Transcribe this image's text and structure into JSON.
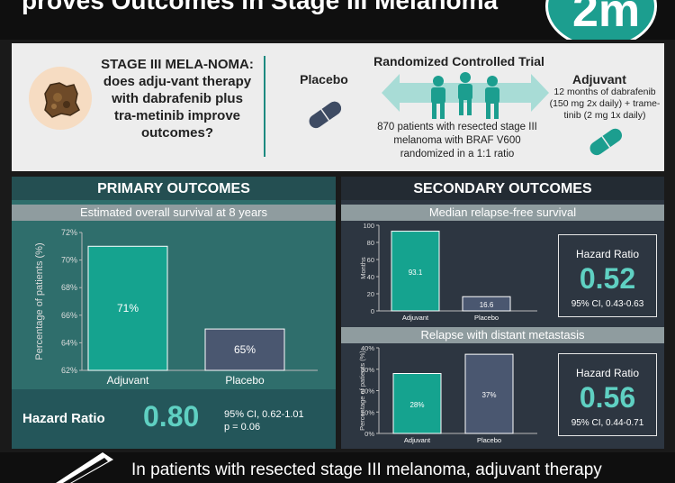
{
  "header": {
    "title": "proves Outcomes in Stage III Melanoma",
    "logo": "2m"
  },
  "intro": {
    "question": "STAGE III MELA-NOMA: does adju-vant therapy with dabrafenib plus tra-metinib improve outcomes?",
    "placebo_label": "Placebo",
    "rct_title": "Randomized Controlled Trial",
    "rct_description": "870 patients with resected stage III melanoma with BRAF V600 randomized in a 1:1 ratio",
    "adjuvant_label": "Adjuvant",
    "adjuvant_description": "12 months of dabrafenib (150 mg 2x daily) + trame-tinib (2 mg 1x daily)"
  },
  "primary": {
    "heading": "PRIMARY OUTCOMES",
    "subheading": "Estimated overall survival at 8 years",
    "hazard_label": "Hazard Ratio",
    "hazard_value": "0.80",
    "ci": "95% CI, 0.62-1.01",
    "p_value": "p = 0.06"
  },
  "secondary": {
    "heading": "SECONDARY OUTCOMES",
    "rfs_subheading": "Median relapse-free survival",
    "rfs_hr_label": "Hazard Ratio",
    "rfs_hr_value": "0.52",
    "rfs_ci": "95% CI, 0.43-0.63",
    "meta_subheading": "Relapse with distant metastasis",
    "meta_hr_label": "Hazard Ratio",
    "meta_hr_value": "0.56",
    "meta_ci": "95% CI, 0.44-0.71"
  },
  "colors": {
    "adjuvant": "#15a38f",
    "placebo": "#4a5770",
    "accent": "#5fd0c2"
  },
  "icons": [
    "melanoma-lesion-icon",
    "placebo-pill-icon",
    "people-arrows-icon",
    "adjuvant-pill-icon",
    "pen-icon"
  ],
  "chart_data": [
    {
      "type": "bar",
      "title": "Estimated overall survival at 8 years",
      "categories": [
        "Adjuvant",
        "Placebo"
      ],
      "values": [
        71,
        65
      ],
      "data_labels": [
        "71%",
        "65%"
      ],
      "ylabel": "Percentage of patients (%)",
      "ylim": [
        62,
        72
      ],
      "yticks": [
        "62%",
        "64%",
        "66%",
        "68%",
        "70%",
        "72%"
      ]
    },
    {
      "type": "bar",
      "title": "Median relapse-free survival",
      "categories": [
        "Adjuvant",
        "Placebo"
      ],
      "values": [
        93.1,
        16.6
      ],
      "data_labels": [
        "93.1",
        "16.6"
      ],
      "ylabel": "Months",
      "ylim": [
        0,
        100
      ],
      "yticks": [
        "0",
        "20",
        "40",
        "60",
        "80",
        "100"
      ]
    },
    {
      "type": "bar",
      "title": "Relapse with distant metastasis",
      "categories": [
        "Adjuvant",
        "Placebo"
      ],
      "values": [
        28,
        37
      ],
      "data_labels": [
        "28%",
        "37%"
      ],
      "ylabel": "Percentage of patients (%)",
      "ylim": [
        0,
        40
      ],
      "yticks": [
        "0%",
        "10%",
        "20%",
        "30%",
        "40%"
      ]
    }
  ],
  "footer": {
    "text": "In patients with resected stage III melanoma, adjuvant therapy"
  }
}
